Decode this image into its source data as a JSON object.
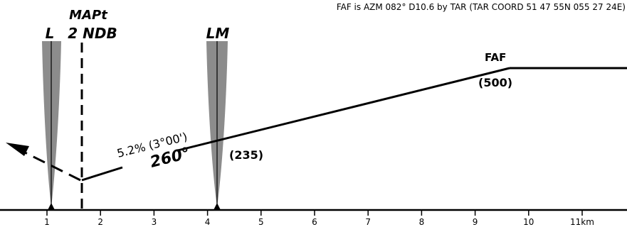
{
  "header_note": "FAF is AZM 082° D10.6 by TAR (TAR COORD 51 47 55N 055 27 24E)",
  "beacons": {
    "l_label": "L",
    "mapt_label": "MAPt",
    "ndb_label": "2 NDB",
    "lm_label": "LM"
  },
  "fixes": {
    "faf_label": "FAF",
    "faf_altitude": "(500)",
    "lm_altitude": "(235)"
  },
  "path": {
    "gradient_label": "5.2% (3°00')",
    "course_label": "260°"
  },
  "scale": {
    "ticks": [
      "1",
      "2",
      "3",
      "4",
      "5",
      "6",
      "7",
      "8",
      "9",
      "10",
      "11km"
    ]
  },
  "colors": {
    "ink": "#000000",
    "beam": "#8c8c8c"
  }
}
